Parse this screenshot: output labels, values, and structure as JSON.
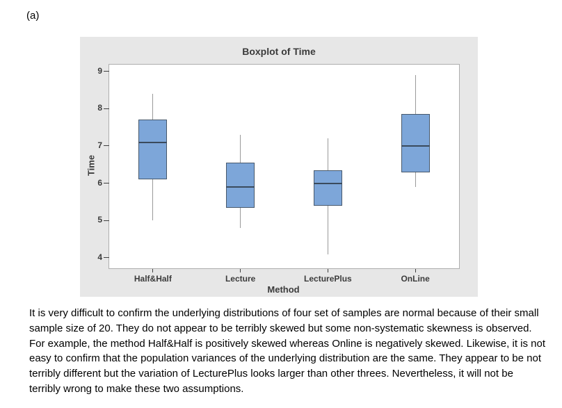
{
  "part_label": "(a)",
  "commentary": "It is very difficult to confirm the underlying distributions of four set of samples are normal because of their small sample size of 20. They do not appear to be terribly skewed but some non-systematic skewness is observed. For example, the method Half&Half is positively skewed whereas Online is negatively skewed. Likewise, it is not easy to confirm that the population variances of the underlying distribution are the same. They appear to be not terribly different but the variation of LecturePlus looks larger than other threes. Nevertheless, it will not be terribly wrong to make these two assumptions.",
  "chart_data": {
    "type": "boxplot",
    "title": "Boxplot of Time",
    "xlabel": "Method",
    "ylabel": "Time",
    "categories": [
      "Half&Half",
      "Lecture",
      "LecturePlus",
      "OnLine"
    ],
    "yticks": [
      9,
      8,
      7,
      6,
      5,
      4
    ],
    "ylim": [
      3.72,
      9.18
    ],
    "grid": false,
    "legend": "none",
    "series": [
      {
        "name": "Half&Half",
        "whisker_low": 5.0,
        "q1": 6.1,
        "median": 7.1,
        "q3": 7.7,
        "whisker_high": 8.4
      },
      {
        "name": "Lecture",
        "whisker_low": 4.8,
        "q1": 5.35,
        "median": 5.9,
        "q3": 6.55,
        "whisker_high": 7.3
      },
      {
        "name": "LecturePlus",
        "whisker_low": 4.1,
        "q1": 5.4,
        "median": 6.0,
        "q3": 6.35,
        "whisker_high": 7.2
      },
      {
        "name": "OnLine",
        "whisker_low": 5.9,
        "q1": 6.3,
        "median": 7.0,
        "q3": 7.85,
        "whisker_high": 8.9
      }
    ],
    "colors": {
      "box_fill": "#7da6d9",
      "box_border": "#47586b",
      "median": "#3a4a5c",
      "whisker": "#999999",
      "tick": "#3f3f3f",
      "panel_bg": "#e7e7e7",
      "plot_bg": "#ffffff",
      "plot_border": "#adadad",
      "text": "#3b3b3b"
    }
  }
}
